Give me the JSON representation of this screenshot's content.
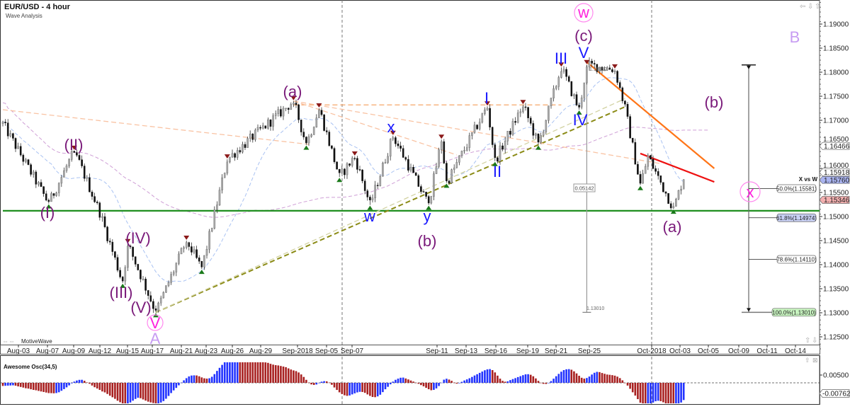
{
  "header": {
    "title": "EUR/USD - 4 hour",
    "subtitle": "Wave Analysis"
  },
  "footer_brand": "MotiveWave",
  "nav_icons": [
    "arrow-left-icon",
    "arrow-down-icon",
    "arrow-up-icon"
  ],
  "chart_data": {
    "type": "candlestick",
    "title": "EUR/USD - 4 hour",
    "subtitle": "Wave Analysis",
    "x_unit": "4-hour bar index",
    "ylim": [
      1.1215,
      1.195
    ],
    "y_ticks": [
      "1.19000",
      "1.18500",
      "1.18000",
      "1.17500",
      "1.17000",
      "1.16500",
      "1.16000",
      "1.15500",
      "1.15000",
      "1.14500",
      "1.14000",
      "1.13500",
      "1.13000",
      "1.12500"
    ],
    "x_ticks": [
      "Aug-03",
      "Aug-07",
      "Aug-09",
      "Aug-12",
      "Aug-15",
      "Aug-17",
      "Aug-21",
      "Aug-23",
      "Aug-26",
      "Aug-29",
      "Sep-2018",
      "Sep-05",
      "Sep-07",
      "Sep-11",
      "Sep-13",
      "Sep-16",
      "Sep-19",
      "Sep-21",
      "Sep-25",
      "Oct-2018",
      "Oct-03",
      "Oct-05",
      "Oct-09",
      "Oct-11",
      "Oct-14"
    ],
    "pivots": [
      {
        "bar": 0,
        "price": 1.1693,
        "type": "start"
      },
      {
        "bar": 18,
        "price": 1.1527,
        "type": "low"
      },
      {
        "bar": 28,
        "price": 1.1637,
        "type": "high"
      },
      {
        "bar": 38,
        "price": 1.1509,
        "type": "mid"
      },
      {
        "bar": 47,
        "price": 1.1362,
        "type": "low"
      },
      {
        "bar": 49,
        "price": 1.1443,
        "type": "high"
      },
      {
        "bar": 60,
        "price": 1.1301,
        "type": "low"
      },
      {
        "bar": 72,
        "price": 1.145,
        "type": "high"
      },
      {
        "bar": 78,
        "price": 1.1391,
        "type": "low"
      },
      {
        "bar": 88,
        "price": 1.1619,
        "type": "high"
      },
      {
        "bar": 114,
        "price": 1.174,
        "type": "high"
      },
      {
        "bar": 119,
        "price": 1.1649,
        "type": "low"
      },
      {
        "bar": 124,
        "price": 1.1725,
        "type": "high"
      },
      {
        "bar": 132,
        "price": 1.1582,
        "type": "low"
      },
      {
        "bar": 138,
        "price": 1.1625,
        "type": "high"
      },
      {
        "bar": 144,
        "price": 1.1524,
        "type": "low"
      },
      {
        "bar": 153,
        "price": 1.1668,
        "type": "high"
      },
      {
        "bar": 167,
        "price": 1.1524,
        "type": "low"
      },
      {
        "bar": 172,
        "price": 1.166,
        "type": "high"
      },
      {
        "bar": 174,
        "price": 1.157,
        "type": "low"
      },
      {
        "bar": 190,
        "price": 1.1729,
        "type": "high"
      },
      {
        "bar": 193,
        "price": 1.1615,
        "type": "low"
      },
      {
        "bar": 204,
        "price": 1.1732,
        "type": "high"
      },
      {
        "bar": 210,
        "price": 1.1649,
        "type": "low"
      },
      {
        "bar": 219,
        "price": 1.181,
        "type": "high"
      },
      {
        "bar": 226,
        "price": 1.1722,
        "type": "low"
      },
      {
        "bar": 229,
        "price": 1.1815,
        "type": "high"
      },
      {
        "bar": 240,
        "price": 1.1806,
        "type": "high"
      },
      {
        "bar": 244,
        "price": 1.1725,
        "type": "mid"
      },
      {
        "bar": 250,
        "price": 1.1565,
        "type": "low"
      },
      {
        "bar": 253,
        "price": 1.1625,
        "type": "mid"
      },
      {
        "bar": 263,
        "price": 1.1516,
        "type": "low"
      },
      {
        "bar": 267,
        "price": 1.1582,
        "type": "end"
      }
    ],
    "trendlines": [
      {
        "name": "support-line",
        "from": [
          0,
          1.1512
        ],
        "to": [
          320,
          1.1512
        ],
        "color": "#1f8f1f",
        "style": "solid"
      },
      {
        "name": "olive-trendline",
        "from": [
          60,
          1.1301
        ],
        "to": [
          244,
          1.1728
        ],
        "color": "#8b8b16",
        "style": "dashed"
      },
      {
        "name": "olive-trendline-light",
        "from": [
          60,
          1.1301
        ],
        "to": [
          244,
          1.1745
        ],
        "color": "#d2d2a2",
        "style": "dashed"
      },
      {
        "name": "resistance-dashed",
        "from": [
          114,
          1.1732
        ],
        "to": [
          219,
          1.1732
        ],
        "color": "#f6a66a",
        "style": "dashed"
      },
      {
        "name": "peach-line-1",
        "from": [
          0,
          1.1722
        ],
        "to": [
          120,
          1.165
        ],
        "color": "#f9c3a3",
        "style": "dashed"
      },
      {
        "name": "peach-line-2",
        "from": [
          114,
          1.174
        ],
        "to": [
          178,
          1.1628
        ],
        "color": "#f9c3a3",
        "style": "dashed"
      },
      {
        "name": "peach-line-3",
        "from": [
          114,
          1.174
        ],
        "to": [
          258,
          1.161
        ],
        "color": "#f9c3a3",
        "style": "dashed"
      },
      {
        "name": "orange-downtrend",
        "from": [
          229,
          1.1821
        ],
        "to": [
          279,
          1.16
        ],
        "color": "#ff7518",
        "style": "solid"
      },
      {
        "name": "red-downtrend",
        "from": [
          250,
          1.1631
        ],
        "to": [
          279,
          1.1572
        ],
        "color": "#ee1111",
        "style": "solid"
      }
    ],
    "measure": {
      "top": "1.18152",
      "bottom": "1.13010",
      "range": "0.05142",
      "top_value": 1.18152,
      "bottom_value": 1.1301
    },
    "fib": {
      "title": "X vs W",
      "top": 1.1815,
      "bottom": 1.1301,
      "levels": [
        {
          "label": "50.0%(1.15581)",
          "price": 1.15581,
          "bg": "#ffffff"
        },
        {
          "label": "61.8%(1.14974)",
          "price": 1.14974,
          "bg": "#c8d0f4"
        },
        {
          "label": "78.6%(1.14110)",
          "price": 1.1411,
          "bg": "#ffffff"
        },
        {
          "label": "100.0%(1.13010)",
          "price": 1.1301,
          "bg": "#c8f4c0"
        }
      ]
    },
    "price_badges": [
      {
        "label": "1.16466",
        "price": 1.16466,
        "bg": "#ffffff"
      },
      {
        "label": "1.15918",
        "price": 1.15918,
        "bg": "#ffffff"
      },
      {
        "label": "1.15760",
        "price": 1.1576,
        "bg": "#aab4f0"
      },
      {
        "label": "1.15346",
        "price": 1.15346,
        "bg": "#f4b0b0"
      }
    ],
    "wave_labels": {
      "p1": "(I)",
      "p2": "(II)",
      "p3": "(III)",
      "p4": "(IV)",
      "p5": "(V)",
      "v_circle": "V",
      "A": "A",
      "a1": "(a)",
      "x": "x",
      "w": "w",
      "y": "y",
      "b1": "(b)",
      "i1": "I",
      "i2": "II",
      "i3": "III",
      "i4": "IV",
      "i5": "V",
      "c": "(c)",
      "w_circle": "w",
      "a2": "(a)",
      "b2": "(b)",
      "B": "B",
      "x_circle": "x"
    },
    "oscillator": {
      "title": "Awesome Osc(34,5)",
      "fast": 5,
      "slow": 34,
      "y_ticks": [
        "0.00500"
      ],
      "badge": "-0.00762",
      "up_color": "#2233ff",
      "down_color": "#a82020"
    },
    "moving_averages": [
      {
        "name": "ma-fast",
        "period": 20,
        "color": "#a9c2f2"
      },
      {
        "name": "ma-slow",
        "period": 100,
        "color": "#cf9fd6"
      }
    ]
  }
}
